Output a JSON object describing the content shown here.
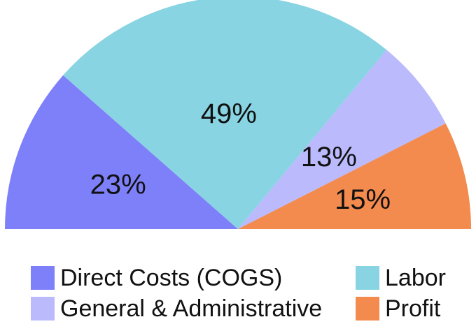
{
  "chart_data": {
    "type": "pie",
    "title": "",
    "slices": [
      {
        "label": "Direct Costs (COGS)",
        "value": 23,
        "display": "23%",
        "color": "#7e80fa"
      },
      {
        "label": "Labor",
        "value": 49,
        "display": "49%",
        "color": "#88d4e2"
      },
      {
        "label": "General & Administrative",
        "value": 13,
        "display": "13%",
        "color": "#babafd"
      },
      {
        "label": "Profit",
        "value": 15,
        "display": "15%",
        "color": "#f38a4e"
      }
    ],
    "legend_position": "bottom",
    "chart_shape": "semicircle (half donut without hole), starting at left"
  }
}
